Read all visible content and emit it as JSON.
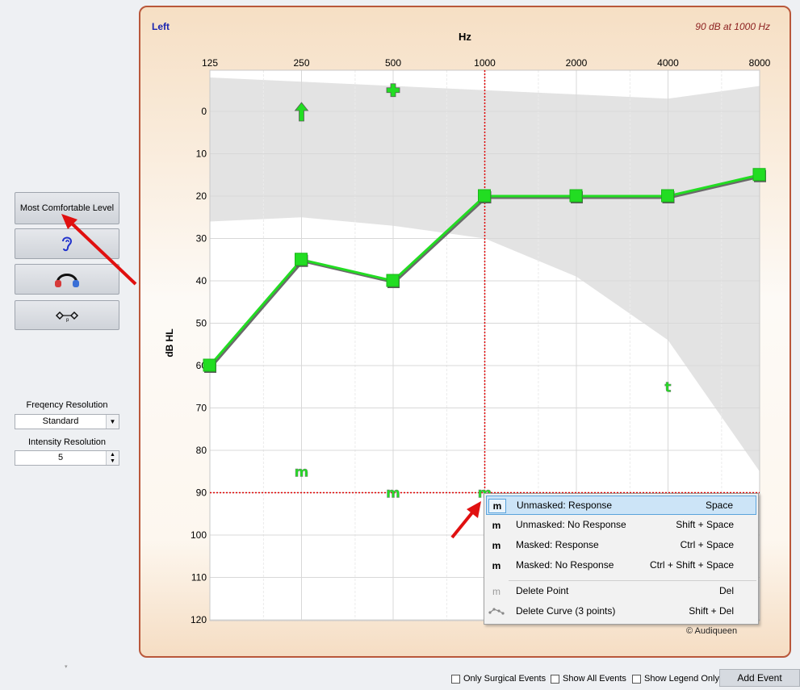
{
  "sidebar": {
    "mcl_button": "Most Comfortable Level",
    "ear_icon": "ear-icon",
    "headphones_icon": "headphones-icon",
    "bone_icon": "bone-conduction-icon",
    "freq_label": "Freqency Resolution",
    "freq_value": "Standard",
    "intensity_label": "Intensity Resolution",
    "intensity_value": "5"
  },
  "chart_header": {
    "ear": "Left",
    "cursor_readout": "90 dB at 1000 Hz",
    "xlabel": "Hz",
    "ylabel": "dB HL",
    "copyright": "© Audiqueen"
  },
  "chart_data": {
    "type": "line",
    "xlabel": "Hz",
    "ylabel": "dB HL",
    "x_ticks": [
      "125",
      "250",
      "500",
      "1000",
      "2000",
      "4000",
      "8000"
    ],
    "y_ticks": [
      "0",
      "10",
      "20",
      "30",
      "40",
      "50",
      "60",
      "70",
      "80",
      "90",
      "100",
      "110",
      "120"
    ],
    "ylim": [
      -10,
      120
    ],
    "y_inverted": true,
    "x_scale": "log",
    "grid": true,
    "cursor": {
      "freq": 1000,
      "db": 90
    },
    "series": [
      {
        "color": "#22dd22",
        "marker": "square",
        "points": [
          [
            125,
            60
          ],
          [
            250,
            35
          ],
          [
            500,
            40
          ],
          [
            1000,
            20
          ],
          [
            2000,
            20
          ],
          [
            4000,
            20
          ],
          [
            8000,
            15
          ]
        ]
      }
    ],
    "symbols": [
      {
        "freq": 250,
        "db": 0,
        "glyph": "up-arrow"
      },
      {
        "freq": 500,
        "db": -5,
        "glyph": "plus"
      },
      {
        "freq": 250,
        "db": 85,
        "glyph": "m"
      },
      {
        "freq": 500,
        "db": 90,
        "glyph": "m"
      },
      {
        "freq": 1000,
        "db": 90,
        "glyph": "m"
      },
      {
        "freq": 4000,
        "db": 65,
        "glyph": "t"
      }
    ],
    "speech_banana": {
      "upper": [
        [
          125,
          -8
        ],
        [
          250,
          -7
        ],
        [
          500,
          -6
        ],
        [
          1000,
          -5
        ],
        [
          2000,
          -4
        ],
        [
          4000,
          -3
        ],
        [
          8000,
          -6
        ]
      ],
      "lower": [
        [
          125,
          26
        ],
        [
          250,
          25
        ],
        [
          500,
          27
        ],
        [
          1000,
          30
        ],
        [
          2000,
          39
        ],
        [
          4000,
          54
        ],
        [
          8000,
          85
        ]
      ]
    }
  },
  "context_menu": {
    "items": [
      {
        "icon": "m",
        "label": "Unmasked: Response",
        "shortcut": "Space"
      },
      {
        "icon": "m",
        "label": "Unmasked: No Response",
        "shortcut": "Shift + Space"
      },
      {
        "icon": "m",
        "label": "Masked: Response",
        "shortcut": "Ctrl + Space"
      },
      {
        "icon": "m",
        "label": "Masked: No Response",
        "shortcut": "Ctrl + Shift + Space"
      },
      {
        "icon": "m",
        "label": "Delete Point",
        "shortcut": "Del"
      },
      {
        "icon": "curve-icon",
        "label": "Delete Curve (3 points)",
        "shortcut": "Shift + Del"
      }
    ]
  },
  "footer": {
    "surgical": "Only Surgical Events",
    "all_events": "Show All Events",
    "legend_only": "Show Legend Only",
    "add_event": "Add Event"
  },
  "colors": {
    "accent": "#b9573a",
    "curve": "#22dd22",
    "cursor": "#e00000"
  }
}
